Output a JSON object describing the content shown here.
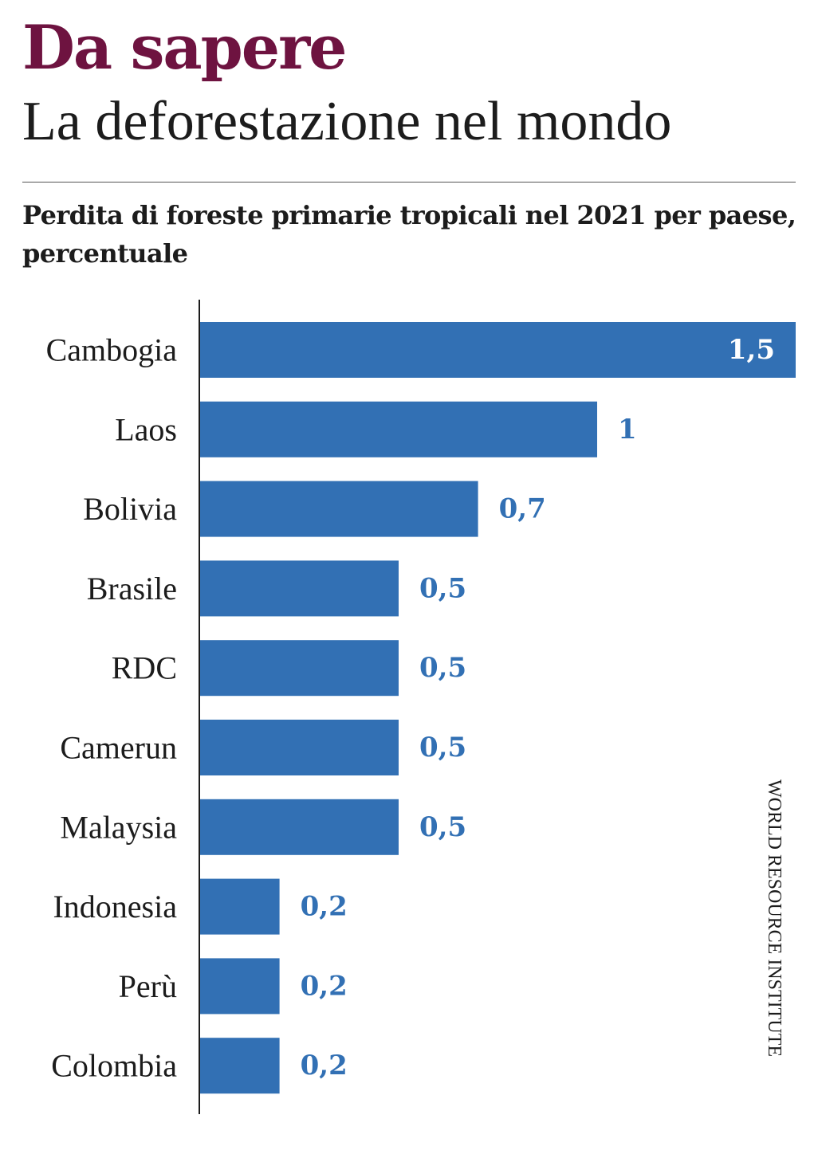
{
  "header": {
    "kicker": "Da sapere",
    "title": "La deforestazione nel mondo",
    "subtitle": "Perdita di foreste primarie tropicali nel 2021 per paese, percentuale"
  },
  "source": "WORLD RESOURCE INSTITUTE",
  "colors": {
    "bar": "#3270b4",
    "value_label": "#3270b4",
    "value_label_inside": "#ffffff",
    "kicker": "#6e1340",
    "text": "#1c1c1c"
  },
  "chart_data": {
    "type": "bar",
    "orientation": "horizontal",
    "categories": [
      "Cambogia",
      "Laos",
      "Bolivia",
      "Brasile",
      "RDC",
      "Camerun",
      "Malaysia",
      "Indonesia",
      "Perù",
      "Colombia"
    ],
    "values": [
      1.5,
      1,
      0.7,
      0.5,
      0.5,
      0.5,
      0.5,
      0.2,
      0.2,
      0.2
    ],
    "value_labels": [
      "1,5",
      "1",
      "0,7",
      "0,5",
      "0,5",
      "0,5",
      "0,5",
      "0,2",
      "0,2",
      "0,2"
    ],
    "title": "Perdita di foreste primarie tropicali nel 2021 per paese, percentuale",
    "xlim": [
      0,
      1.5
    ],
    "grid": false,
    "legend": "none"
  }
}
